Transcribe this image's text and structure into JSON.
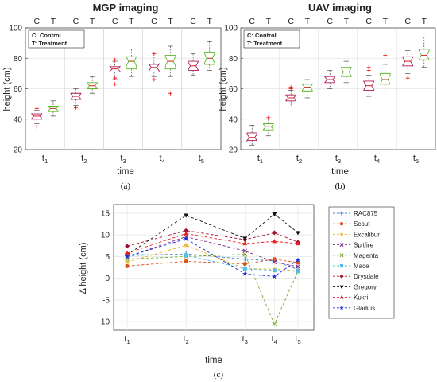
{
  "chart_data": [
    {
      "type": "box",
      "title": "MGP imaging",
      "panel_label": "(a)",
      "xlabel": "time",
      "ylabel": "height (cm)",
      "ylim": [
        20,
        100
      ],
      "yticks": [
        "20",
        "40",
        "60",
        "80",
        "100"
      ],
      "groups": [
        "C",
        "T"
      ],
      "categories": [
        "t",
        "t",
        "t",
        "t",
        "t"
      ],
      "category_subscripts": [
        "1",
        "2",
        "3",
        "4",
        "5"
      ],
      "legend_lines": [
        "C: Control",
        "T: Treatment"
      ],
      "grid": true,
      "colors": {
        "C": "#b0175a",
        "T": "#5cb82a",
        "outlier": "#ee2222"
      },
      "boxes": [
        {
          "group": "C",
          "time": "t1",
          "whisker_low": 37,
          "q1": 40,
          "median": 42,
          "q3": 43.5,
          "whisker_high": 46,
          "outliers": [
            35,
            47
          ]
        },
        {
          "group": "T",
          "time": "t1",
          "whisker_low": 42,
          "q1": 45,
          "median": 47,
          "q3": 48.5,
          "whisker_high": 52,
          "outliers": []
        },
        {
          "group": "C",
          "time": "t2",
          "whisker_low": 49,
          "q1": 53,
          "median": 55,
          "q3": 57,
          "whisker_high": 60,
          "outliers": [
            47.5
          ]
        },
        {
          "group": "T",
          "time": "t2",
          "whisker_low": 57,
          "q1": 60,
          "median": 62,
          "q3": 64,
          "whisker_high": 68,
          "outliers": []
        },
        {
          "group": "C",
          "time": "t3",
          "whisker_low": 66,
          "q1": 71,
          "median": 73,
          "q3": 74.5,
          "whisker_high": 78,
          "outliers": [
            63,
            67,
            79
          ]
        },
        {
          "group": "T",
          "time": "t3",
          "whisker_low": 68,
          "q1": 73,
          "median": 78,
          "q3": 81,
          "whisker_high": 86,
          "outliers": []
        },
        {
          "group": "C",
          "time": "t4",
          "whisker_low": 68,
          "q1": 71,
          "median": 74,
          "q3": 76,
          "whisker_high": 81,
          "outliers": [
            66,
            83
          ]
        },
        {
          "group": "T",
          "time": "t4",
          "whisker_low": 68,
          "q1": 73,
          "median": 78,
          "q3": 82,
          "whisker_high": 88,
          "outliers": [
            57
          ]
        },
        {
          "group": "C",
          "time": "t5",
          "whisker_low": 69,
          "q1": 72,
          "median": 75,
          "q3": 78,
          "whisker_high": 83,
          "outliers": []
        },
        {
          "group": "T",
          "time": "t5",
          "whisker_low": 72,
          "q1": 76,
          "median": 80,
          "q3": 84,
          "whisker_high": 91,
          "outliers": []
        }
      ]
    },
    {
      "type": "box",
      "title": "UAV imaging",
      "panel_label": "(b)",
      "xlabel": "time",
      "ylabel": "height (cm)",
      "ylim": [
        20,
        100
      ],
      "yticks": [
        "20",
        "40",
        "60",
        "80",
        "100"
      ],
      "groups": [
        "C",
        "T"
      ],
      "categories": [
        "t",
        "t",
        "t",
        "t",
        "t"
      ],
      "category_subscripts": [
        "1",
        "2",
        "3",
        "4",
        "5"
      ],
      "legend_lines": [
        "C: Control",
        "T: Treatment"
      ],
      "grid": true,
      "colors": {
        "C": "#b0175a",
        "T": "#5cb82a",
        "outlier": "#ee2222"
      },
      "boxes": [
        {
          "group": "C",
          "time": "t1",
          "whisker_low": 23,
          "q1": 26,
          "median": 28,
          "q3": 31,
          "whisker_high": 36,
          "outliers": []
        },
        {
          "group": "T",
          "time": "t1",
          "whisker_low": 29,
          "q1": 33,
          "median": 35,
          "q3": 37,
          "whisker_high": 40,
          "outliers": [
            41
          ]
        },
        {
          "group": "C",
          "time": "t2",
          "whisker_low": 48,
          "q1": 52,
          "median": 54,
          "q3": 56,
          "whisker_high": 59,
          "outliers": [
            60,
            61
          ]
        },
        {
          "group": "T",
          "time": "t2",
          "whisker_low": 54,
          "q1": 58.5,
          "median": 61,
          "q3": 63,
          "whisker_high": 66,
          "outliers": []
        },
        {
          "group": "C",
          "time": "t3",
          "whisker_low": 60,
          "q1": 64,
          "median": 66,
          "q3": 68,
          "whisker_high": 72,
          "outliers": []
        },
        {
          "group": "T",
          "time": "t3",
          "whisker_low": 64,
          "q1": 68,
          "median": 71,
          "q3": 74,
          "whisker_high": 78,
          "outliers": []
        },
        {
          "group": "C",
          "time": "t4",
          "whisker_low": 55,
          "q1": 59,
          "median": 62,
          "q3": 65,
          "whisker_high": 69,
          "outliers": [
            72,
            74
          ]
        },
        {
          "group": "T",
          "time": "t4",
          "whisker_low": 58,
          "q1": 63,
          "median": 66,
          "q3": 70,
          "whisker_high": 76,
          "outliers": [
            82
          ]
        },
        {
          "group": "C",
          "time": "t5",
          "whisker_low": 70,
          "q1": 75,
          "median": 78,
          "q3": 81,
          "whisker_high": 85,
          "outliers": [
            67
          ]
        },
        {
          "group": "T",
          "time": "t5",
          "whisker_low": 74,
          "q1": 79,
          "median": 82,
          "q3": 86,
          "whisker_high": 94,
          "outliers": []
        }
      ]
    },
    {
      "type": "line",
      "panel_label": "(c)",
      "xlabel": "time",
      "ylabel": "Δ height (cm)",
      "ylim": [
        -12,
        17
      ],
      "yticks": [
        "-10",
        "-5",
        "0",
        "5",
        "10",
        "15"
      ],
      "x_labels": [
        "t",
        "t",
        "t",
        "t",
        "t"
      ],
      "x_subscripts": [
        "1",
        "2",
        "3",
        "4",
        "5"
      ],
      "x": [
        1,
        2,
        3,
        3.5,
        3.9
      ],
      "grid": true,
      "legend_position": "right",
      "series": [
        {
          "name": "RAC875",
          "color": "#3f82c6",
          "marker": "plus",
          "values": [
            5.2,
            5.6,
            4.4,
            4.0,
            2.0
          ]
        },
        {
          "name": "Scout",
          "color": "#d9541b",
          "marker": "circle",
          "values": [
            2.8,
            3.9,
            3.3,
            4.4,
            3.6
          ]
        },
        {
          "name": "Excalibur",
          "color": "#edb120",
          "marker": "star",
          "values": [
            3.7,
            7.6,
            2.2,
            2.1,
            1.7
          ]
        },
        {
          "name": "Spitfire",
          "color": "#7e2f8e",
          "marker": "x",
          "values": [
            4.9,
            9.6,
            6.3,
            3.7,
            2.7
          ]
        },
        {
          "name": "Magenta",
          "color": "#77ac30",
          "marker": "x",
          "values": [
            4.4,
            5.0,
            5.5,
            -10.6,
            1.6
          ]
        },
        {
          "name": "Mace",
          "color": "#4dbeee",
          "marker": "square",
          "values": [
            5.5,
            5.3,
            2.2,
            1.8,
            1.6
          ]
        },
        {
          "name": "Drysdale",
          "color": "#a2142f",
          "marker": "diamond",
          "values": [
            7.4,
            11.0,
            8.9,
            10.5,
            8.3
          ]
        },
        {
          "name": "Gregory",
          "color": "#111111",
          "marker": "triangle-down",
          "values": [
            5.4,
            14.5,
            9.2,
            14.8,
            10.5
          ]
        },
        {
          "name": "Kukri",
          "color": "#ee2020",
          "marker": "triangle-up",
          "values": [
            5.8,
            10.3,
            8.0,
            8.5,
            8.0
          ]
        },
        {
          "name": "Gladius",
          "color": "#1f2fdd",
          "marker": "star",
          "values": [
            5.0,
            9.1,
            1.0,
            0.4,
            4.2
          ]
        }
      ]
    }
  ]
}
